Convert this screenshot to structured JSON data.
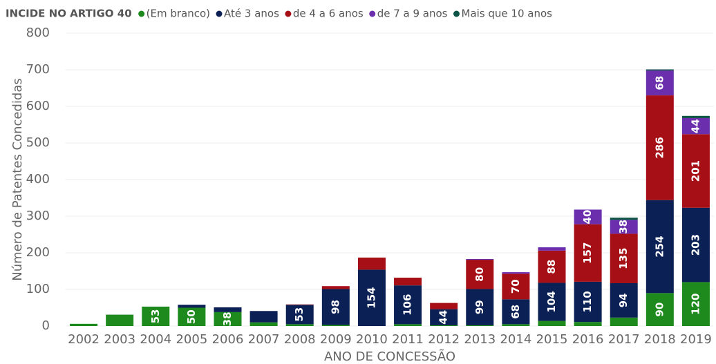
{
  "chart_data": {
    "type": "stacked_bar",
    "legend_title": "INCIDE NO ARTIGO 40",
    "x_label": "ANO DE CONCESSÃO",
    "y_label": "Número de Patentes Concedidas",
    "categories": [
      "2002",
      "2003",
      "2004",
      "2005",
      "2006",
      "2007",
      "2008",
      "2009",
      "2010",
      "2011",
      "2012",
      "2013",
      "2014",
      "2015",
      "2016",
      "2017",
      "2018",
      "2019"
    ],
    "series": [
      {
        "name": "(Em branco)",
        "color": "#1e8a1e",
        "values": [
          6,
          31,
          53,
          50,
          38,
          10,
          5,
          3,
          0,
          5,
          2,
          2,
          5,
          14,
          11,
          23,
          90,
          120
        ]
      },
      {
        "name": "Até 3 anos",
        "color": "#0b2054",
        "values": [
          0,
          0,
          0,
          8,
          13,
          31,
          53,
          98,
          154,
          106,
          44,
          99,
          68,
          104,
          110,
          94,
          254,
          203
        ]
      },
      {
        "name": "de 4 a 6 anos",
        "color": "#a50f15",
        "values": [
          0,
          0,
          0,
          0,
          0,
          0,
          1,
          8,
          33,
          21,
          17,
          80,
          70,
          88,
          157,
          135,
          286,
          201
        ]
      },
      {
        "name": "de 7 a 9 anos",
        "color": "#6b2fae",
        "values": [
          0,
          0,
          0,
          0,
          0,
          0,
          0,
          0,
          0,
          0,
          0,
          2,
          4,
          9,
          40,
          38,
          68,
          44
        ]
      },
      {
        "name": "Mais que 10 anos",
        "color": "#0d5446",
        "values": [
          0,
          0,
          0,
          0,
          0,
          0,
          0,
          0,
          0,
          0,
          0,
          0,
          0,
          0,
          0,
          6,
          3,
          6
        ]
      }
    ],
    "ylim": [
      0,
      800
    ],
    "yticks": [
      0,
      100,
      200,
      300,
      400,
      500,
      600,
      700,
      800
    ],
    "grid": true,
    "legend": "top-left"
  }
}
